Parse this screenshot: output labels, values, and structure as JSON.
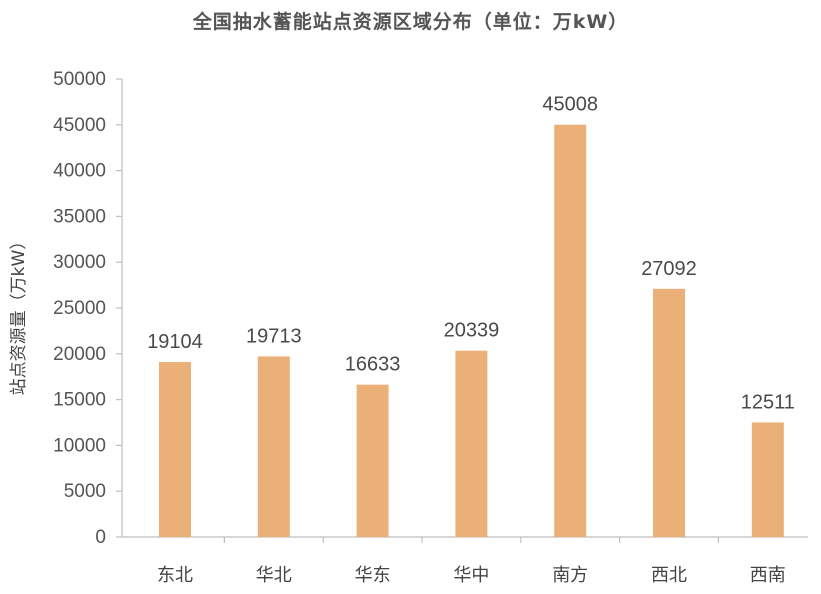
{
  "chart_data": {
    "type": "bar",
    "title": "全国抽水蓄能站点资源区域分布（单位：万kW）",
    "xlabel": "",
    "ylabel": "站点资源量（万kW）",
    "categories": [
      "东北",
      "华北",
      "华东",
      "华中",
      "南方",
      "西北",
      "西南"
    ],
    "values": [
      19104,
      19713,
      16633,
      20339,
      45008,
      27092,
      12511
    ],
    "ylim": [
      0,
      50000
    ],
    "yticks": [
      0,
      5000,
      10000,
      15000,
      20000,
      25000,
      30000,
      35000,
      40000,
      45000,
      50000
    ],
    "bar_color": "#ebb078",
    "axis_color": "#bfbfbf",
    "grid": false,
    "legend": "none",
    "data_labels": true
  }
}
